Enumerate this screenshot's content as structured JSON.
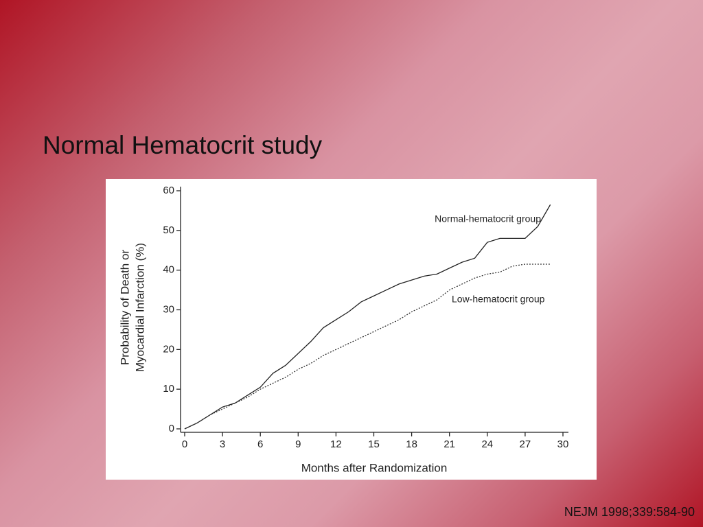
{
  "slide": {
    "title": "Normal Hematocrit study",
    "citation": "NEJM 1998;339:584-90"
  },
  "chart_data": {
    "type": "line",
    "xlabel": "Months after Randomization",
    "ylabel": [
      "Probability of Death or",
      "Myocardial Infarction (%)"
    ],
    "x": [
      0,
      1,
      2,
      3,
      4,
      5,
      6,
      7,
      8,
      9,
      10,
      11,
      12,
      13,
      14,
      15,
      16,
      17,
      18,
      19,
      20,
      21,
      22,
      23,
      24,
      25,
      26,
      27,
      28,
      29
    ],
    "series": [
      {
        "name": "Normal-hematocrit group",
        "color": "#222222",
        "line_style": "solid",
        "values": [
          0,
          1.5,
          3.5,
          5.5,
          6.5,
          8.5,
          10.5,
          14,
          16,
          19,
          22,
          25.5,
          27.5,
          29.5,
          32,
          33.5,
          35,
          36.5,
          37.5,
          38.5,
          39,
          40.5,
          42,
          43,
          47,
          48,
          48,
          48,
          51,
          56.5
        ]
      },
      {
        "name": "Low-hematocrit group",
        "color": "#333333",
        "line_style": "dotted",
        "values": [
          0,
          1.5,
          3.5,
          5,
          6.5,
          8,
          10,
          11.5,
          13,
          15,
          16.5,
          18.5,
          20,
          21.5,
          23,
          24.5,
          26,
          27.5,
          29.5,
          31,
          32.5,
          35,
          36.5,
          38,
          39,
          39.5,
          41,
          41.5,
          41.5,
          41.5
        ]
      }
    ],
    "xlim": [
      0,
      30
    ],
    "xticks": [
      0,
      3,
      6,
      9,
      12,
      15,
      18,
      21,
      24,
      27,
      30
    ],
    "ylim": [
      0,
      60
    ],
    "yticks": [
      0,
      10,
      20,
      30,
      40,
      50,
      60
    ],
    "grid": false
  }
}
